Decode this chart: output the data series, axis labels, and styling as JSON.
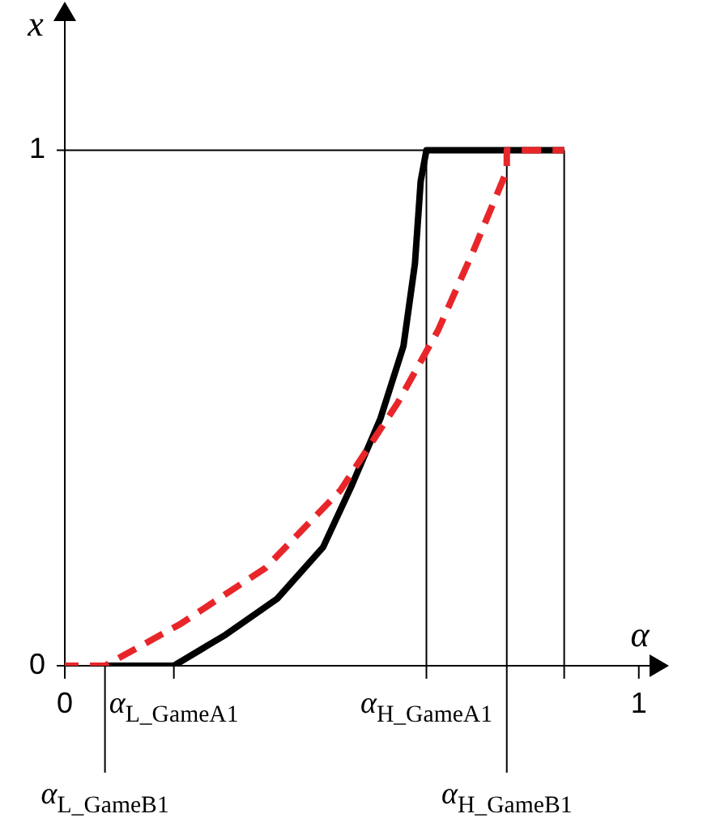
{
  "chart_data": {
    "type": "line",
    "xlabel": "α",
    "ylabel": "x",
    "xlim": [
      0,
      1.03
    ],
    "ylim": [
      0,
      1.26
    ],
    "xticks": [
      0,
      {
        "value": 0.19,
        "label": "α$_{L_GameA1}$"
      },
      {
        "value": 0.63,
        "label": "α$_{H_GameA1}$"
      },
      {
        "value": 0.87,
        "label": null
      },
      1
    ],
    "annotations": [
      {
        "text": "α$_{L_GameB1}$",
        "x": 0.07
      },
      {
        "text": "α$_{H_GameB1}$",
        "x": 0.77
      }
    ],
    "yticks": [
      0,
      1
    ],
    "marker": "none",
    "grid": false,
    "ref_lines": [
      {
        "axis": "x",
        "value": 0.63
      },
      {
        "axis": "x",
        "value": 0.77
      },
      {
        "axis": "x",
        "value": 0.87
      },
      {
        "axis": "y",
        "value": 1
      }
    ],
    "series": [
      {
        "color": "#000000",
        "line_style": "solid",
        "x": [
          0.07,
          0.19,
          0.28,
          0.37,
          0.45,
          0.5,
          0.55,
          0.59,
          0.61,
          0.62,
          0.63,
          0.87
        ],
        "values": [
          0,
          0,
          0.06,
          0.13,
          0.23,
          0.35,
          0.48,
          0.62,
          0.78,
          0.94,
          1,
          1
        ]
      },
      {
        "color": "#e8262a",
        "line_style": "dashed",
        "x": [
          0,
          0.07,
          0.2,
          0.35,
          0.48,
          0.58,
          0.65,
          0.71,
          0.77,
          0.77,
          0.87
        ],
        "values": [
          0,
          0,
          0.08,
          0.19,
          0.34,
          0.51,
          0.65,
          0.8,
          0.96,
          1,
          1
        ]
      }
    ]
  }
}
